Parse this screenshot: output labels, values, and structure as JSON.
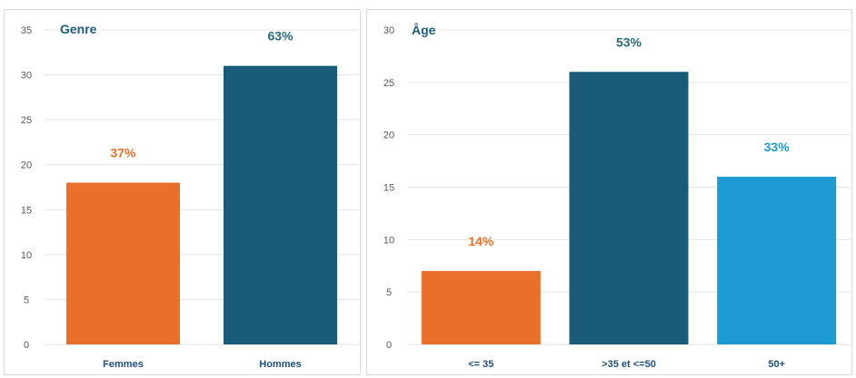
{
  "chart_data": [
    {
      "type": "bar",
      "title": "Genre",
      "categories": [
        "Femmes",
        "Hommes"
      ],
      "values": [
        18,
        31
      ],
      "data_labels": [
        "37%",
        "63%"
      ],
      "colors": [
        "#e8702a",
        "#1a5b7a"
      ],
      "label_colors": [
        "#e8702a",
        "#2a6a78"
      ],
      "ylim": [
        0,
        35
      ],
      "yticks": [
        0,
        5,
        10,
        15,
        20,
        25,
        30,
        35
      ],
      "grid": true,
      "legend": "none"
    },
    {
      "type": "bar",
      "title": "Âge",
      "categories": [
        "<= 35",
        ">35 et <=50",
        "50+"
      ],
      "values": [
        7,
        26,
        16
      ],
      "data_labels": [
        "14%",
        "53%",
        "33%"
      ],
      "colors": [
        "#e8702a",
        "#1a5b7a",
        "#1c9bd2"
      ],
      "label_colors": [
        "#e8702a",
        "#2a6a78",
        "#1c9bd2"
      ],
      "ylim": [
        0,
        30
      ],
      "yticks": [
        0,
        5,
        10,
        15,
        20,
        25,
        30
      ],
      "grid": true,
      "legend": "none"
    }
  ]
}
